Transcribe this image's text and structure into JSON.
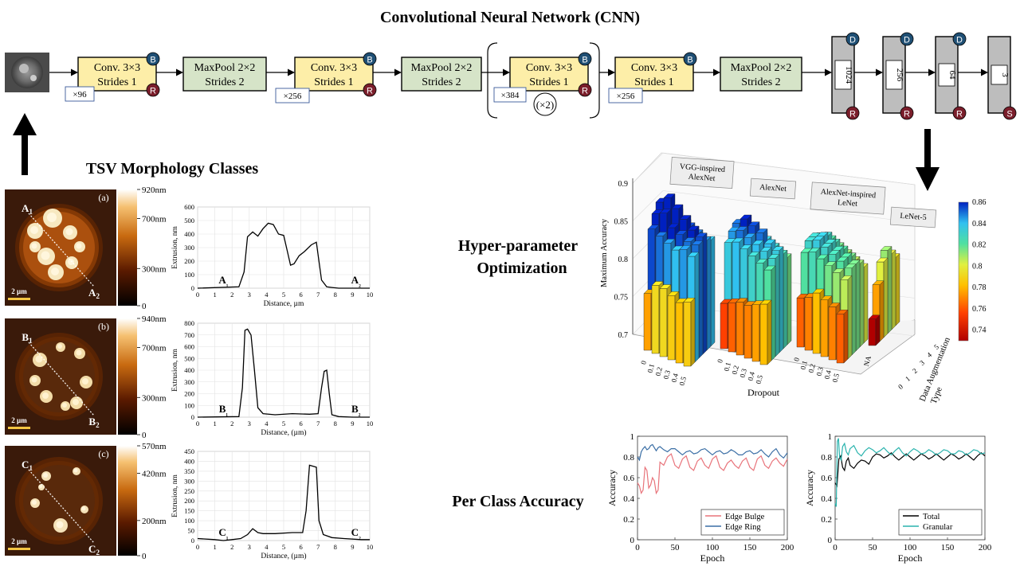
{
  "cnn": {
    "title": "Convolutional Neural Network (CNN)",
    "conv_label": "Conv. 3×3",
    "conv_strides": "Strides 1",
    "pool_label": "MaxPool 2×2",
    "pool_strides": "Strides 2",
    "badge_b": "B",
    "badge_r": "R",
    "badge_d": "D",
    "badge_s": "S",
    "filters": [
      "×96",
      "×256",
      "×384",
      "×256"
    ],
    "repeat": "(×2)",
    "dense_units": [
      "1024",
      "256",
      "64",
      "3"
    ]
  },
  "sections": {
    "morphology_title": "TSV Morphology Classes",
    "hyper_title_1": "Hyper-parameter",
    "hyper_title_2": "Optimization",
    "per_class_title": "Per Class Accuracy"
  },
  "morphology": [
    {
      "panel": "(a)",
      "scale_bar": "2 µm",
      "colorbar_ticks": [
        "920nm",
        "700nm",
        "300nm",
        "0"
      ],
      "marker_start": "A1",
      "marker_end": "A2",
      "chart_data": {
        "type": "line",
        "xlabel": "Distance, µm",
        "ylabel": "Extrusion, nm",
        "xlim": [
          0,
          10
        ],
        "ylim": [
          0,
          600
        ],
        "xticks": [
          "0",
          "1",
          "2",
          "3",
          "4",
          "5",
          "6",
          "7",
          "8",
          "9",
          "10"
        ],
        "yticks": [
          "0",
          "100",
          "200",
          "300",
          "400",
          "500",
          "600"
        ],
        "start_label": "A₁",
        "end_label": "A₂",
        "x": [
          0,
          2.4,
          2.7,
          2.9,
          3.2,
          3.5,
          3.8,
          4.1,
          4.4,
          4.7,
          5.0,
          5.2,
          5.4,
          5.6,
          5.9,
          6.2,
          6.6,
          6.9,
          7.2,
          7.5,
          7.8,
          8.2,
          9,
          10
        ],
        "y": [
          0,
          10,
          120,
          380,
          415,
          385,
          440,
          480,
          470,
          400,
          390,
          280,
          170,
          180,
          240,
          270,
          320,
          340,
          60,
          10,
          5,
          0,
          0,
          0
        ]
      }
    },
    {
      "panel": "(b)",
      "scale_bar": "2 µm",
      "colorbar_ticks": [
        "940nm",
        "700nm",
        "300nm",
        "0"
      ],
      "marker_start": "B1",
      "marker_end": "B2",
      "chart_data": {
        "type": "line",
        "xlabel": "Distance, (µm)",
        "ylabel": "Extrusion, nm",
        "xlim": [
          0,
          10
        ],
        "ylim": [
          0,
          800
        ],
        "xticks": [
          "0",
          "1",
          "2",
          "3",
          "4",
          "5",
          "6",
          "7",
          "8",
          "9",
          "10"
        ],
        "yticks": [
          "0",
          "100",
          "200",
          "300",
          "400",
          "500",
          "600",
          "700",
          "800"
        ],
        "start_label": "B₁",
        "end_label": "B₂",
        "x": [
          0,
          2.4,
          2.6,
          2.75,
          2.9,
          3.1,
          3.3,
          3.5,
          3.8,
          4.5,
          5.5,
          6.5,
          7.0,
          7.2,
          7.35,
          7.5,
          7.65,
          7.8,
          8.2,
          9,
          10
        ],
        "y": [
          0,
          5,
          250,
          740,
          750,
          700,
          400,
          80,
          30,
          20,
          30,
          25,
          30,
          250,
          390,
          400,
          200,
          20,
          5,
          0,
          0
        ]
      }
    },
    {
      "panel": "(c)",
      "scale_bar": "2 µm",
      "colorbar_ticks": [
        "570nm",
        "420nm",
        "200nm",
        "0"
      ],
      "marker_start": "C1",
      "marker_end": "C2",
      "chart_data": {
        "type": "line",
        "xlabel": "Distance, (µm)",
        "ylabel": "Extrusion, nm",
        "xlim": [
          0,
          10
        ],
        "ylim": [
          0,
          450
        ],
        "xticks": [
          "0",
          "1",
          "2",
          "3",
          "4",
          "5",
          "6",
          "7",
          "8",
          "9",
          "10"
        ],
        "yticks": [
          "0",
          "50",
          "100",
          "150",
          "200",
          "250",
          "300",
          "350",
          "400",
          "450"
        ],
        "start_label": "C₁",
        "end_label": "C₂",
        "x": [
          0,
          1,
          1.5,
          2,
          2.5,
          2.9,
          3.2,
          3.5,
          3.8,
          4.5,
          5.5,
          6.1,
          6.3,
          6.5,
          6.9,
          7.05,
          7.3,
          7.8,
          8.5,
          9.5,
          10
        ],
        "y": [
          10,
          5,
          0,
          5,
          10,
          30,
          60,
          40,
          35,
          35,
          40,
          40,
          150,
          380,
          370,
          100,
          30,
          15,
          10,
          5,
          5
        ]
      }
    }
  ],
  "hyper": {
    "chart_data": {
      "type": "bar3d",
      "zlabel": "Maximum Accuracy",
      "xlabel": "Dropout",
      "ylabel": "Data Augmentation Type",
      "zlim": [
        0.7,
        0.9
      ],
      "zticks": [
        "0.9",
        "0.85",
        "0.8",
        "0.75",
        "0.7"
      ],
      "colorbar_ticks": [
        "0.86",
        "0.84",
        "0.82",
        "0.8",
        "0.78",
        "0.76",
        "0.74"
      ],
      "aug_ticks": [
        "0",
        "1",
        "2",
        "3",
        "4",
        "5"
      ],
      "groups": [
        {
          "name": "VGG-inspired AlexNet",
          "dropout": [
            "0",
            "0.1",
            "0.2",
            "0.3",
            "0.4",
            "0.5"
          ],
          "values": [
            [
              0.775,
              0.855,
              0.87,
              0.88,
              0.86,
              0.85
            ],
            [
              0.79,
              0.85,
              0.875,
              0.89,
              0.87,
              0.86
            ],
            [
              0.79,
              0.845,
              0.86,
              0.88,
              0.86,
              0.85
            ],
            [
              0.785,
              0.84,
              0.855,
              0.87,
              0.855,
              0.845
            ],
            [
              0.78,
              0.845,
              0.85,
              0.86,
              0.85,
              0.84
            ],
            [
              0.785,
              0.84,
              0.85,
              0.855,
              0.845,
              0.84
            ]
          ]
        },
        {
          "name": "AlexNet",
          "dropout": [
            "0",
            "0.1",
            "0.2",
            "0.3",
            "0.4",
            "0.5"
          ],
          "values": [
            [
              0.76,
              0.835,
              0.845,
              0.85,
              0.84,
              0.83
            ],
            [
              0.765,
              0.84,
              0.85,
              0.86,
              0.845,
              0.835
            ],
            [
              0.77,
              0.835,
              0.845,
              0.855,
              0.84,
              0.83
            ],
            [
              0.77,
              0.83,
              0.84,
              0.85,
              0.835,
              0.825
            ],
            [
              0.775,
              0.825,
              0.835,
              0.84,
              0.83,
              0.82
            ],
            [
              0.78,
              0.82,
              0.83,
              0.835,
              0.825,
              0.815
            ]
          ]
        },
        {
          "name": "AlexNet-inspired LeNet",
          "dropout": [
            "0",
            "0.1",
            "0.2",
            "0.3",
            "0.4",
            "0.5"
          ],
          "values": [
            [
              0.765,
              0.82,
              0.83,
              0.83,
              0.825,
              0.82
            ],
            [
              0.77,
              0.825,
              0.835,
              0.835,
              0.83,
              0.82
            ],
            [
              0.78,
              0.82,
              0.83,
              0.83,
              0.825,
              0.815
            ],
            [
              0.775,
              0.815,
              0.825,
              0.825,
              0.82,
              0.81
            ],
            [
              0.77,
              0.81,
              0.82,
              0.82,
              0.815,
              0.805
            ],
            [
              0.765,
              0.805,
              0.815,
              0.815,
              0.81,
              0.8
            ]
          ]
        },
        {
          "name": "LeNet-5",
          "dropout": [
            "NA"
          ],
          "values": [
            [
              0.735,
              0.775,
              0.8,
              0.81,
              0.8,
              0.79
            ]
          ]
        }
      ]
    }
  },
  "per_class": [
    {
      "chart_data": {
        "type": "line",
        "xlabel": "Epoch",
        "ylabel": "Accuracy",
        "xlim": [
          0,
          200
        ],
        "ylim": [
          0,
          1
        ],
        "xticks": [
          "0",
          "50",
          "100",
          "150",
          "200"
        ],
        "yticks": [
          "0",
          "0.2",
          "0.4",
          "0.6",
          "0.8",
          "1"
        ],
        "legend": "bottom-right",
        "series": [
          {
            "name": "Edge Bulge",
            "color": "#e8737a",
            "x": [
              0,
              5,
              10,
              15,
              20,
              25,
              30,
              40,
              50,
              60,
              70,
              80,
              90,
              100,
              110,
              120,
              130,
              140,
              150,
              160,
              170,
              180,
              190,
              200
            ],
            "y": [
              0.55,
              0.45,
              0.7,
              0.5,
              0.6,
              0.45,
              0.75,
              0.8,
              0.72,
              0.78,
              0.7,
              0.76,
              0.72,
              0.78,
              0.7,
              0.74,
              0.72,
              0.76,
              0.7,
              0.78,
              0.72,
              0.76,
              0.74,
              0.78
            ]
          },
          {
            "name": "Edge Ring",
            "color": "#3a6ea5",
            "x": [
              0,
              5,
              10,
              15,
              20,
              25,
              30,
              40,
              50,
              60,
              70,
              80,
              90,
              100,
              110,
              120,
              130,
              140,
              150,
              160,
              170,
              180,
              190,
              200
            ],
            "y": [
              0.8,
              0.85,
              0.9,
              0.88,
              0.92,
              0.86,
              0.9,
              0.85,
              0.88,
              0.82,
              0.86,
              0.84,
              0.88,
              0.82,
              0.86,
              0.84,
              0.85,
              0.82,
              0.86,
              0.84,
              0.83,
              0.85,
              0.82,
              0.84
            ]
          }
        ]
      }
    },
    {
      "chart_data": {
        "type": "line",
        "xlabel": "Epoch",
        "ylabel": "Accuracy",
        "xlim": [
          0,
          200
        ],
        "ylim": [
          0,
          1
        ],
        "xticks": [
          "0",
          "50",
          "100",
          "150",
          "200"
        ],
        "yticks": [
          "0",
          "0.2",
          "0.4",
          "0.6",
          "0.8",
          "1"
        ],
        "legend": "bottom-right",
        "series": [
          {
            "name": "Total",
            "color": "#000000",
            "x": [
              0,
              5,
              10,
              15,
              20,
              30,
              40,
              50,
              60,
              70,
              80,
              90,
              100,
              110,
              120,
              130,
              140,
              150,
              160,
              170,
              180,
              190,
              200
            ],
            "y": [
              0.55,
              0.78,
              0.7,
              0.76,
              0.72,
              0.74,
              0.76,
              0.8,
              0.82,
              0.81,
              0.8,
              0.8,
              0.8,
              0.8,
              0.81,
              0.8,
              0.8,
              0.8,
              0.81,
              0.8,
              0.8,
              0.81,
              0.81
            ]
          },
          {
            "name": "Granular",
            "color": "#2ab3ad",
            "x": [
              0,
              3,
              6,
              10,
              15,
              20,
              30,
              40,
              50,
              60,
              70,
              80,
              90,
              100,
              110,
              120,
              130,
              140,
              150,
              160,
              170,
              180,
              190,
              200
            ],
            "y": [
              0.35,
              0.95,
              0.8,
              0.9,
              0.85,
              0.88,
              0.84,
              0.86,
              0.87,
              0.86,
              0.85,
              0.86,
              0.84,
              0.85,
              0.86,
              0.84,
              0.85,
              0.84,
              0.86,
              0.83,
              0.85,
              0.84,
              0.86,
              0.84
            ]
          }
        ]
      }
    }
  ]
}
